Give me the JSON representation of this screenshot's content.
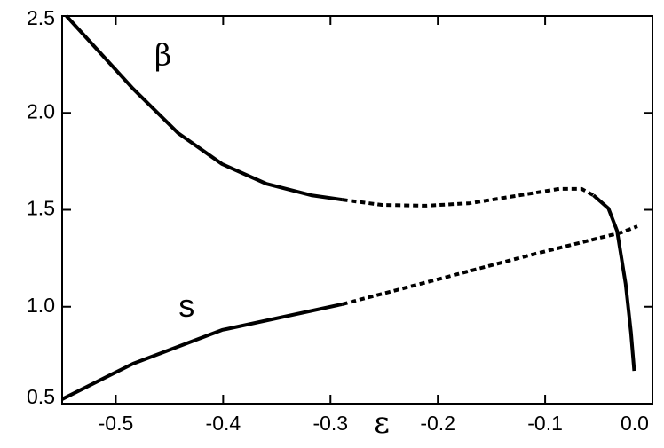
{
  "chart_data": {
    "type": "line",
    "x_label": "ε",
    "xlim": [
      -0.55,
      0.0
    ],
    "xticks": [
      -0.5,
      -0.4,
      -0.3,
      -0.2,
      -0.1,
      {
        "value": 0,
        "label": "0.0"
      }
    ],
    "ylim": [
      0.5,
      2.5
    ],
    "yticks": [
      0.5,
      {
        "value": 1,
        "label": "1.0"
      },
      1.5,
      {
        "value": 2,
        "label": "2.0"
      },
      2.5
    ],
    "series": [
      {
        "color": "#000000",
        "line_style": "solid",
        "x": [
          -0.546,
          -0.484,
          -0.442,
          -0.401,
          -0.36,
          -0.318,
          -0.289
        ],
        "values": [
          2.5,
          2.125,
          1.896,
          1.736,
          1.635,
          1.575,
          1.552
        ]
      },
      {
        "color": "#000000",
        "line_style": "dashed",
        "x": [
          -0.289,
          -0.252,
          -0.211,
          -0.17,
          -0.128,
          -0.087,
          -0.066,
          -0.055
        ],
        "values": [
          1.552,
          1.525,
          1.521,
          1.534,
          1.571,
          1.608,
          1.608,
          1.575
        ]
      },
      {
        "color": "#000000",
        "line_style": "solid",
        "x": [
          -0.055,
          -0.041,
          -0.033,
          -0.025,
          -0.02,
          -0.017
        ],
        "values": [
          1.575,
          1.507,
          1.392,
          1.118,
          0.866,
          0.669
        ]
      },
      {
        "color": "#000000",
        "line_style": "solid",
        "x": [
          -0.55,
          -0.484,
          -0.401,
          -0.289
        ],
        "values": [
          0.523,
          0.706,
          0.88,
          1.013
        ]
      },
      {
        "color": "#000000",
        "line_style": "dashed",
        "x": [
          -0.289,
          -0.194,
          -0.112,
          -0.029,
          -0.014
        ],
        "values": [
          1.013,
          1.15,
          1.269,
          1.383,
          1.415
        ]
      }
    ],
    "annotations": [
      {
        "text": "β",
        "x": -0.456,
        "y": 2.245
      },
      {
        "text": "s",
        "x": -0.434,
        "y": 0.949
      }
    ]
  }
}
